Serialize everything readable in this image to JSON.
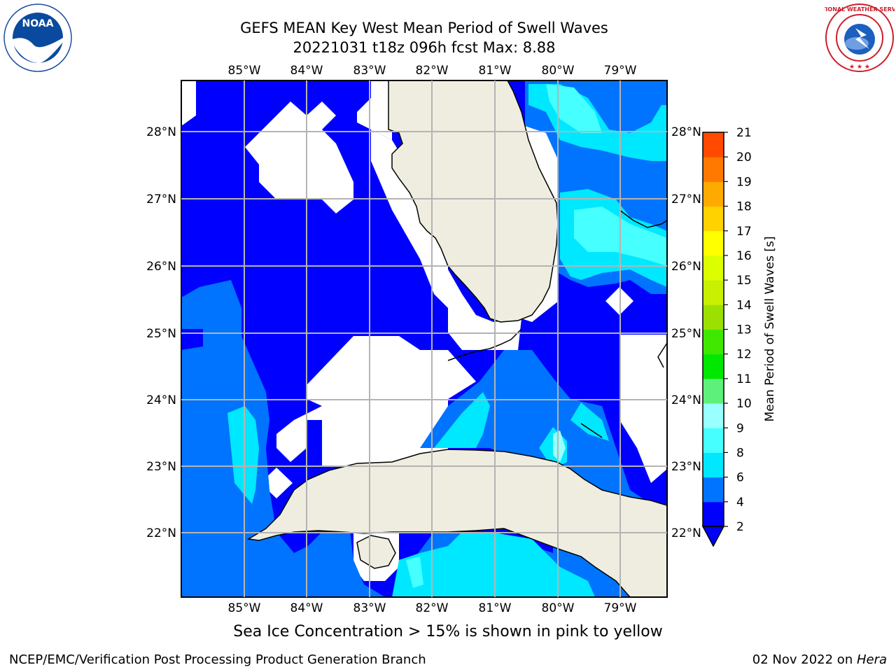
{
  "title": {
    "line1": "GEFS MEAN Key West Mean Period of Swell Waves",
    "line2": "20221031 t18z 096h fcst   Max: 8.88"
  },
  "caption": "Sea Ice Concentration > 15% is shown in pink to yellow",
  "footer": {
    "left": "NCEP/EMC/Verification Post Processing Product Generation Branch",
    "date": "02 Nov 2022 on ",
    "host": "Hera"
  },
  "logos": {
    "noaa_text": "NOAA",
    "nws_text": "NATIONAL WEATHER SERVICE"
  },
  "map": {
    "lon_labels": [
      "85°W",
      "84°W",
      "83°W",
      "82°W",
      "81°W",
      "80°W",
      "79°W"
    ],
    "lat_labels": [
      "28°N",
      "27°N",
      "26°N",
      "25°N",
      "24°N",
      "23°N",
      "22°N"
    ],
    "land_color": "#eeeddf",
    "grid_color": "#b4b4b4"
  },
  "colorbar": {
    "label": "Mean Period of Swell Waves [s]",
    "ticks": [
      "2",
      "4",
      "6",
      "8",
      "9",
      "10",
      "11",
      "12",
      "13",
      "14",
      "15",
      "16",
      "17",
      "18",
      "19",
      "20",
      "21"
    ],
    "colors": [
      "#0000ff",
      "#0074ff",
      "#00e8ff",
      "#46ffff",
      "#99ffff",
      "#5df07a",
      "#00e800",
      "#40e800",
      "#9be000",
      "#c8f000",
      "#dcff00",
      "#ffff00",
      "#ffd200",
      "#ffaa00",
      "#ff7800",
      "#ff4a00",
      "#ff2000",
      "#ff0000"
    ],
    "extend_color": "#0000ff"
  }
}
